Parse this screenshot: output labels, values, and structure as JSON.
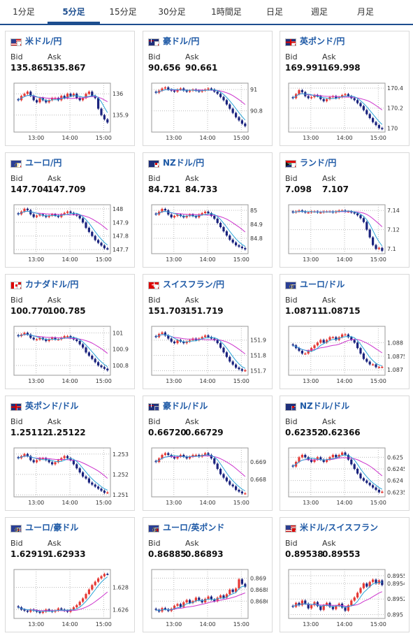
{
  "tabs": [
    {
      "label": "1分足",
      "active": false
    },
    {
      "label": "5分足",
      "active": true
    },
    {
      "label": "15分足",
      "active": false
    },
    {
      "label": "30分足",
      "active": false
    },
    {
      "label": "1時間足",
      "active": false
    },
    {
      "label": "日足",
      "active": false
    },
    {
      "label": "週足",
      "active": false
    },
    {
      "label": "月足",
      "active": false
    }
  ],
  "bid_label": "Bid",
  "ask_label": "Ask",
  "x_ticks": [
    "13:00",
    "14:00",
    "15:00"
  ],
  "colors": {
    "up": "#e53935",
    "down": "#1a237e",
    "ma_short": "#29a3d6",
    "ma_long": "#cc33cc",
    "title": "#1f5aa6"
  },
  "cards": [
    {
      "pair": "米ドル/円",
      "flags": [
        "us",
        "jp"
      ],
      "bid": "135.865",
      "ask": "135.867",
      "chart_data": {
        "type": "candlestick",
        "y_ticks": [
          "136",
          "135.9"
        ],
        "ylim": [
          135.82,
          136.05
        ],
        "closes": [
          135.97,
          135.99,
          136.0,
          136.01,
          135.99,
          135.97,
          135.96,
          135.98,
          135.97,
          135.96,
          135.97,
          135.98,
          135.98,
          135.97,
          135.99,
          135.98,
          136.0,
          135.99,
          136.0,
          135.98,
          135.97,
          135.98,
          136.0,
          136.01,
          135.99,
          135.98,
          135.93,
          135.9,
          135.88,
          135.865
        ]
      }
    },
    {
      "pair": "豪ドル/円",
      "flags": [
        "au",
        "jp"
      ],
      "bid": "90.656",
      "ask": "90.661",
      "chart_data": {
        "type": "candlestick",
        "y_ticks": [
          "91",
          "90.8"
        ],
        "ylim": [
          90.6,
          91.06
        ],
        "closes": [
          90.97,
          90.99,
          91.01,
          91.02,
          91.0,
          90.99,
          90.98,
          91.0,
          91.01,
          90.99,
          90.98,
          90.99,
          91.0,
          90.99,
          90.98,
          90.99,
          91.0,
          91.01,
          91.0,
          90.98,
          90.96,
          90.93,
          90.9,
          90.86,
          90.82,
          90.78,
          90.74,
          90.71,
          90.68,
          90.656
        ]
      }
    },
    {
      "pair": "英ポンド/円",
      "flags": [
        "gb",
        "jp"
      ],
      "bid": "169.991",
      "ask": "169.998",
      "chart_data": {
        "type": "candlestick",
        "y_ticks": [
          "170.4",
          "170.2",
          "170"
        ],
        "ylim": [
          169.96,
          170.45
        ],
        "closes": [
          170.3,
          170.34,
          170.38,
          170.36,
          170.32,
          170.3,
          170.31,
          170.33,
          170.32,
          170.29,
          170.27,
          170.29,
          170.31,
          170.32,
          170.3,
          170.31,
          170.33,
          170.34,
          170.32,
          170.3,
          170.28,
          170.25,
          170.22,
          170.18,
          170.14,
          170.1,
          170.06,
          170.03,
          170.0,
          169.991
        ]
      }
    },
    {
      "pair": "ユーロ/円",
      "flags": [
        "eu",
        "jp"
      ],
      "bid": "147.704",
      "ask": "147.709",
      "chart_data": {
        "type": "candlestick",
        "y_ticks": [
          "148",
          "147.9",
          "147.8",
          "147.7"
        ],
        "ylim": [
          147.67,
          148.03
        ],
        "closes": [
          147.96,
          147.98,
          148.0,
          147.99,
          147.96,
          147.94,
          147.95,
          147.96,
          147.95,
          147.94,
          147.95,
          147.96,
          147.95,
          147.94,
          147.96,
          147.97,
          147.98,
          147.97,
          147.96,
          147.95,
          147.93,
          147.9,
          147.86,
          147.83,
          147.8,
          147.77,
          147.75,
          147.73,
          147.71,
          147.704
        ]
      }
    },
    {
      "pair": "NZドル/円",
      "flags": [
        "nz",
        "jp"
      ],
      "bid": "84.721",
      "ask": "84.733",
      "chart_data": {
        "type": "candlestick",
        "y_ticks": [
          "85",
          "84.9",
          "84.8"
        ],
        "ylim": [
          84.69,
          85.04
        ],
        "closes": [
          84.97,
          84.99,
          85.01,
          85.0,
          84.97,
          84.95,
          84.96,
          84.97,
          84.96,
          84.95,
          84.96,
          84.97,
          84.96,
          84.95,
          84.97,
          84.98,
          84.99,
          84.98,
          84.96,
          84.94,
          84.91,
          84.88,
          84.85,
          84.82,
          84.79,
          84.77,
          84.75,
          84.74,
          84.73,
          84.721
        ]
      }
    },
    {
      "pair": "ランド/円",
      "flags": [
        "za",
        "jp"
      ],
      "bid": "7.098",
      "ask": "7.107",
      "chart_data": {
        "type": "candlestick",
        "y_ticks": [
          "7.14",
          "7.12",
          "7.1"
        ],
        "ylim": [
          7.095,
          7.146
        ],
        "closes": [
          7.138,
          7.139,
          7.14,
          7.139,
          7.138,
          7.138,
          7.139,
          7.139,
          7.138,
          7.138,
          7.139,
          7.139,
          7.139,
          7.138,
          7.139,
          7.14,
          7.14,
          7.139,
          7.139,
          7.138,
          7.137,
          7.135,
          7.132,
          7.128,
          7.12,
          7.112,
          7.104,
          7.1,
          7.101,
          7.098
        ]
      }
    },
    {
      "pair": "カナダドル/円",
      "flags": [
        "ca",
        "jp"
      ],
      "bid": "100.770",
      "ask": "100.785",
      "chart_data": {
        "type": "candlestick",
        "y_ticks": [
          "101",
          "100.9",
          "100.8"
        ],
        "ylim": [
          100.74,
          101.04
        ],
        "closes": [
          100.98,
          100.99,
          101.0,
          100.99,
          100.97,
          100.96,
          100.96,
          100.97,
          100.96,
          100.95,
          100.96,
          100.97,
          100.96,
          100.96,
          100.97,
          100.98,
          100.98,
          100.97,
          100.96,
          100.95,
          100.93,
          100.91,
          100.88,
          100.86,
          100.84,
          100.82,
          100.8,
          100.79,
          100.78,
          100.77
        ]
      }
    },
    {
      "pair": "スイスフラン/円",
      "flags": [
        "ch",
        "jp"
      ],
      "bid": "151.703",
      "ask": "151.719",
      "chart_data": {
        "type": "candlestick",
        "y_ticks": [
          "151.9",
          "151.8",
          "151.7"
        ],
        "ylim": [
          151.67,
          151.99
        ],
        "closes": [
          151.92,
          151.94,
          151.95,
          151.93,
          151.91,
          151.89,
          151.88,
          151.9,
          151.89,
          151.88,
          151.89,
          151.9,
          151.91,
          151.9,
          151.91,
          151.92,
          151.93,
          151.92,
          151.91,
          151.9,
          151.88,
          151.85,
          151.82,
          151.79,
          151.76,
          151.74,
          151.72,
          151.71,
          151.7,
          151.703
        ]
      }
    },
    {
      "pair": "ユーロ/ドル",
      "flags": [
        "eu",
        "us"
      ],
      "bid": "1.08711",
      "ask": "1.08715",
      "chart_data": {
        "type": "candlestick",
        "y_ticks": [
          "1.088",
          "1.0875",
          "1.087"
        ],
        "ylim": [
          1.0868,
          1.0886
        ],
        "closes": [
          1.0879,
          1.0878,
          1.0877,
          1.0876,
          1.0876,
          1.0877,
          1.0878,
          1.0879,
          1.088,
          1.0881,
          1.088,
          1.0881,
          1.0882,
          1.0882,
          1.0881,
          1.0882,
          1.0883,
          1.0883,
          1.0882,
          1.0881,
          1.088,
          1.0878,
          1.0876,
          1.0874,
          1.0873,
          1.0872,
          1.0872,
          1.0871,
          1.0871,
          1.08711
        ]
      }
    },
    {
      "pair": "英ポンド/ドル",
      "flags": [
        "gb",
        "us"
      ],
      "bid": "1.25112",
      "ask": "1.25122",
      "chart_data": {
        "type": "candlestick",
        "y_ticks": [
          "1.253",
          "1.252",
          "1.251"
        ],
        "ylim": [
          1.2509,
          1.2533
        ],
        "closes": [
          1.2528,
          1.2529,
          1.253,
          1.2529,
          1.2527,
          1.2526,
          1.2527,
          1.2528,
          1.2528,
          1.2527,
          1.2526,
          1.2525,
          1.2526,
          1.2527,
          1.2528,
          1.2529,
          1.2528,
          1.2527,
          1.2525,
          1.2523,
          1.2521,
          1.2519,
          1.2518,
          1.2516,
          1.2515,
          1.2514,
          1.2513,
          1.2512,
          1.2511,
          1.25112
        ]
      }
    },
    {
      "pair": "豪ドル/ドル",
      "flags": [
        "au",
        "us"
      ],
      "bid": "0.66720",
      "ask": "0.66729",
      "chart_data": {
        "type": "candlestick",
        "y_ticks": [
          "0.669",
          "0.668"
        ],
        "ylim": [
          0.667,
          0.6698
        ],
        "closes": [
          0.669,
          0.6692,
          0.6694,
          0.6695,
          0.6694,
          0.6693,
          0.6692,
          0.6693,
          0.6694,
          0.6693,
          0.6692,
          0.6693,
          0.6694,
          0.6694,
          0.6693,
          0.6694,
          0.6695,
          0.6694,
          0.6692,
          0.6689,
          0.6686,
          0.6683,
          0.6681,
          0.6679,
          0.6677,
          0.6676,
          0.6674,
          0.6673,
          0.6672,
          0.6672
        ]
      }
    },
    {
      "pair": "NZドル/ドル",
      "flags": [
        "nz",
        "us"
      ],
      "bid": "0.62352",
      "ask": "0.62366",
      "chart_data": {
        "type": "candlestick",
        "y_ticks": [
          "0.625",
          "0.6245",
          "0.624",
          "0.6235"
        ],
        "ylim": [
          0.6233,
          0.6254
        ],
        "closes": [
          0.6246,
          0.6248,
          0.625,
          0.6251,
          0.625,
          0.6249,
          0.6248,
          0.6249,
          0.625,
          0.6249,
          0.6248,
          0.6249,
          0.625,
          0.6251,
          0.625,
          0.6251,
          0.6252,
          0.6251,
          0.6249,
          0.6247,
          0.6245,
          0.6243,
          0.6241,
          0.624,
          0.6239,
          0.6238,
          0.6237,
          0.6236,
          0.6235,
          0.62352
        ]
      }
    },
    {
      "pair": "ユーロ/豪ドル",
      "flags": [
        "eu",
        "au"
      ],
      "bid": "1.62919",
      "ask": "1.62933",
      "chart_data": {
        "type": "candlestick",
        "y_ticks": [
          "1.628",
          "1.626"
        ],
        "ylim": [
          1.6252,
          1.6296
        ],
        "closes": [
          1.6262,
          1.626,
          1.6259,
          1.6258,
          1.626,
          1.6259,
          1.6258,
          1.6257,
          1.6258,
          1.626,
          1.6259,
          1.6258,
          1.6259,
          1.6261,
          1.626,
          1.6259,
          1.6258,
          1.626,
          1.6262,
          1.6264,
          1.6267,
          1.627,
          1.6274,
          1.6278,
          1.6282,
          1.6285,
          1.6288,
          1.629,
          1.6292,
          1.62919
        ]
      }
    },
    {
      "pair": "ユーロ/英ポンド",
      "flags": [
        "eu",
        "gb"
      ],
      "bid": "0.86885",
      "ask": "0.86893",
      "chart_data": {
        "type": "candlestick",
        "y_ticks": [
          "0.869",
          "0.8688",
          "0.8686"
        ],
        "ylim": [
          0.8683,
          0.86915
        ],
        "closes": [
          0.86845,
          0.86842,
          0.86848,
          0.86846,
          0.86843,
          0.86847,
          0.86852,
          0.86855,
          0.8685,
          0.86858,
          0.86862,
          0.86857,
          0.8686,
          0.86866,
          0.86862,
          0.86858,
          0.86864,
          0.86868,
          0.86863,
          0.8686,
          0.86866,
          0.8687,
          0.86866,
          0.86872,
          0.8688,
          0.86876,
          0.86882,
          0.86898,
          0.8689,
          0.86885
        ]
      }
    },
    {
      "pair": "米ドル/スイスフラン",
      "flags": [
        "us",
        "ch"
      ],
      "bid": "0.89538",
      "ask": "0.89553",
      "chart_data": {
        "type": "candlestick",
        "y_ticks": [
          "0.8955",
          "0.8954",
          "0.8952",
          "0.895"
        ],
        "ylim": [
          0.89495,
          0.89558
        ],
        "closes": [
          0.8951,
          0.89515,
          0.89512,
          0.89518,
          0.89514,
          0.89508,
          0.89512,
          0.89516,
          0.89511,
          0.89506,
          0.89512,
          0.89515,
          0.8951,
          0.89507,
          0.89511,
          0.89514,
          0.89509,
          0.89505,
          0.89512,
          0.89518,
          0.89522,
          0.89528,
          0.89534,
          0.8954,
          0.89536,
          0.89542,
          0.89545,
          0.8954,
          0.89544,
          0.89538
        ]
      }
    }
  ]
}
